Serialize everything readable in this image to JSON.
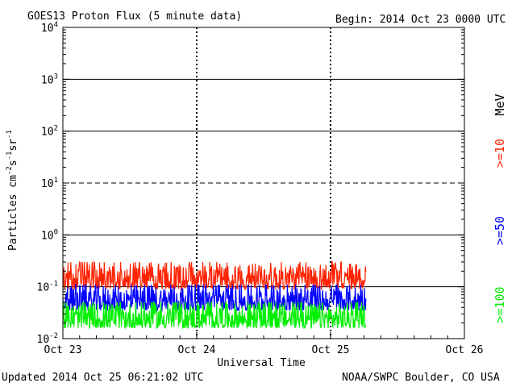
{
  "header": {
    "title": "GOES13 Proton Flux (5 minute data)",
    "begin": "Begin: 2014 Oct 23 0000 UTC"
  },
  "footer": {
    "updated": "Updated 2014 Oct 25 06:21:02 UTC",
    "credit": "NOAA/SWPC Boulder, CO USA"
  },
  "chart_data": {
    "type": "line",
    "title": "GOES13 Proton Flux (5 minute data)",
    "xlabel": "Universal Time",
    "ylabel": "Particles cm⁻²s⁻¹sr⁻¹",
    "yscale": "log",
    "ylim": [
      0.01,
      10000
    ],
    "xlim": [
      "2014-10-23 00:00",
      "2014-10-26 00:00"
    ],
    "x_ticks": [
      "Oct 23",
      "Oct 24",
      "Oct 25",
      "Oct 26"
    ],
    "y_ticks": [
      {
        "base": "10",
        "exp": "-2",
        "value": 0.01
      },
      {
        "base": "10",
        "exp": "-1",
        "value": 0.1
      },
      {
        "base": "10",
        "exp": "0",
        "value": 1
      },
      {
        "base": "10",
        "exp": "1",
        "value": 10
      },
      {
        "base": "10",
        "exp": "2",
        "value": 100
      },
      {
        "base": "10",
        "exp": "3",
        "value": 1000
      },
      {
        "base": "10",
        "exp": "4",
        "value": 10000
      }
    ],
    "thresholds": [
      {
        "value": 10,
        "style": "dashed"
      },
      {
        "value": 0.1,
        "style": "solid"
      }
    ],
    "unit_label": "MeV",
    "series": [
      {
        "name": ">=10",
        "color": "#ff2200",
        "typical_range": [
          0.09,
          0.3
        ]
      },
      {
        "name": ">=50",
        "color": "#0000ff",
        "typical_range": [
          0.035,
          0.11
        ]
      },
      {
        "name": ">=100",
        "color": "#00ee00",
        "typical_range": [
          0.016,
          0.05
        ]
      }
    ],
    "data_end": "2014-10-25 06:20"
  }
}
